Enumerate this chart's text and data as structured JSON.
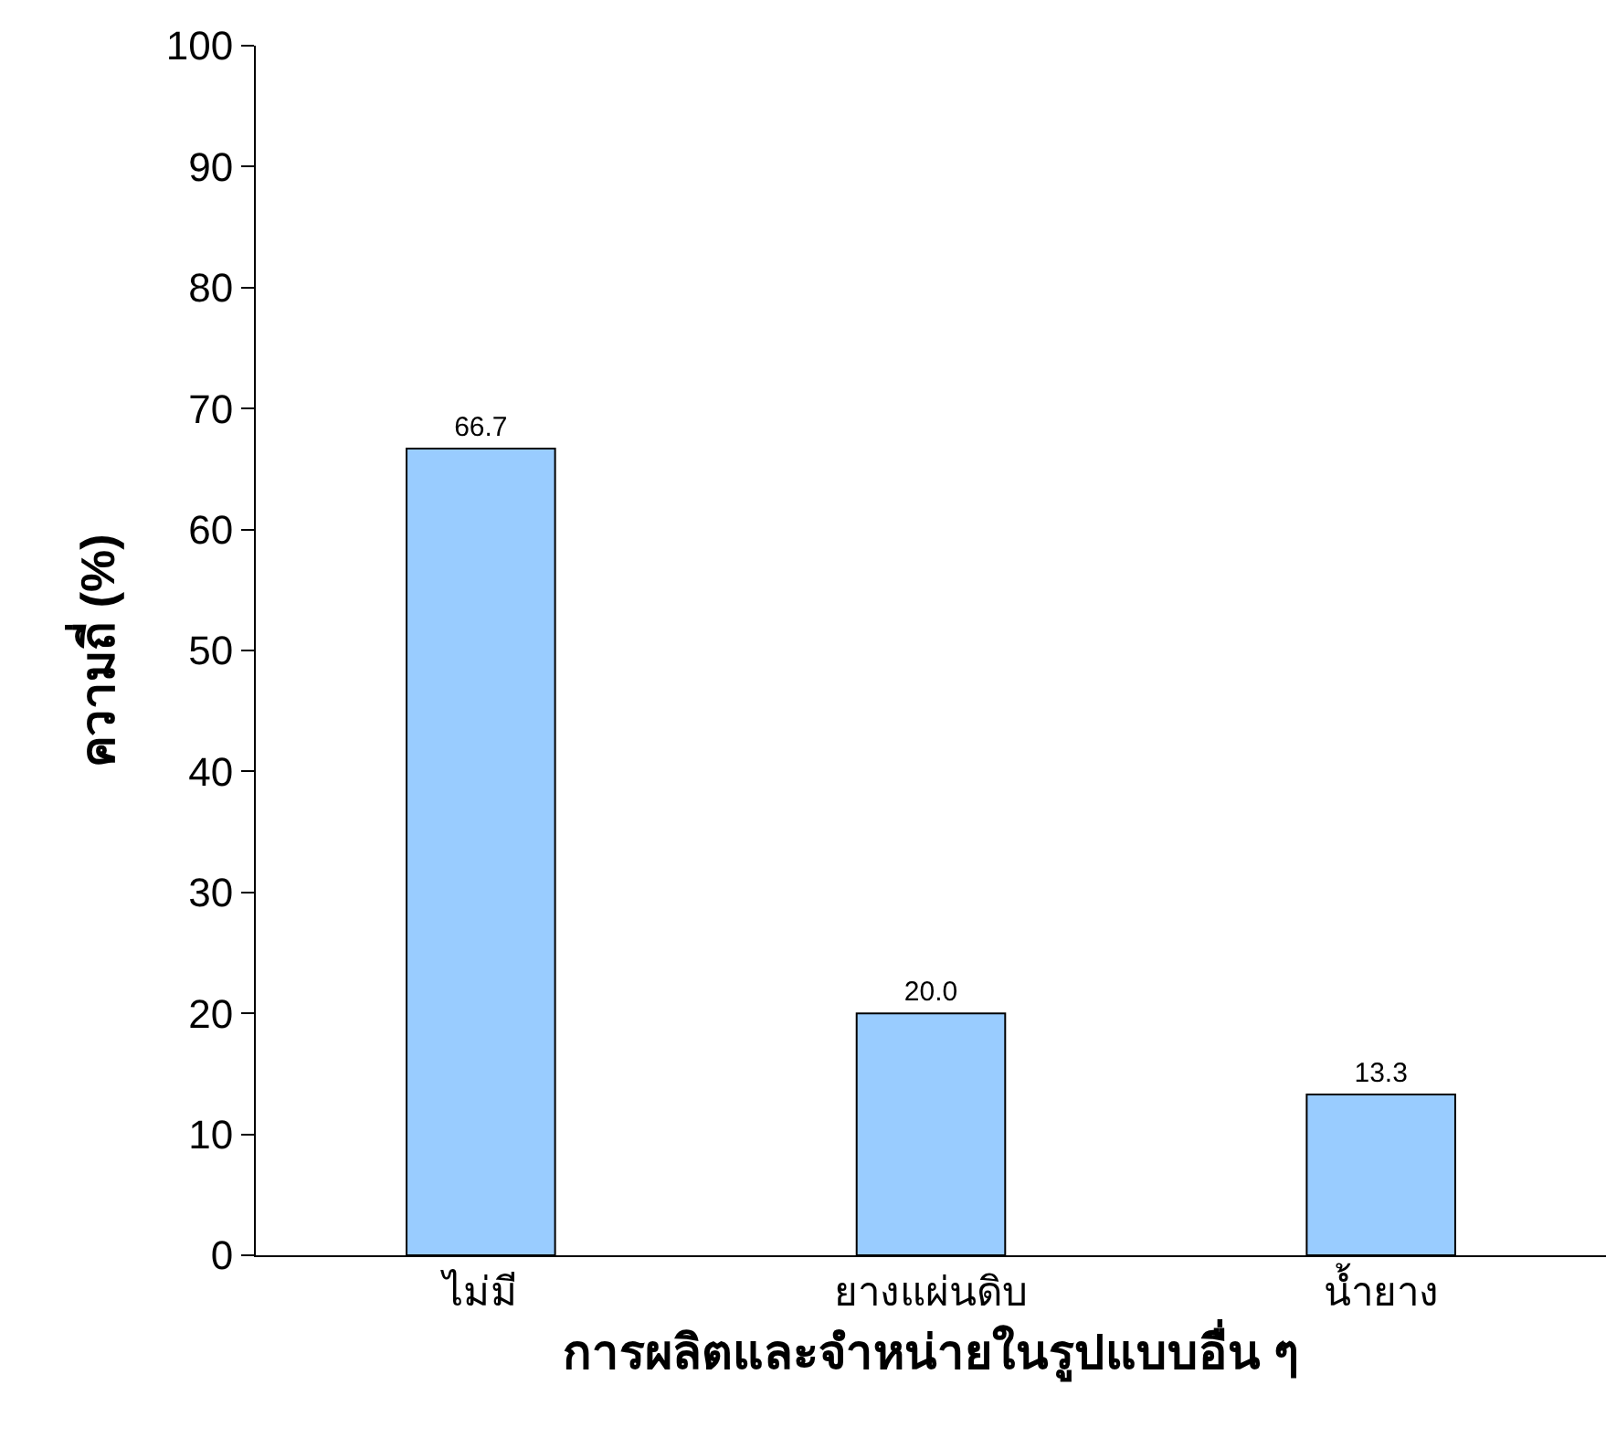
{
  "chart_data": {
    "type": "bar",
    "xlabel": "การผลิตและจำหน่ายในรูปแบบอื่น ๆ",
    "ylabel": "ความถี่ (%)",
    "categories": [
      "ไม่มี",
      "ยางแผ่นดิบ",
      "น้ำยาง"
    ],
    "values": [
      66.7,
      20.0,
      13.3
    ],
    "value_labels": [
      "66.7",
      "20.0",
      "13.3"
    ],
    "color": "#99ccff",
    "ylim": [
      0,
      100
    ],
    "yticks": [
      0,
      10,
      20,
      30,
      40,
      50,
      60,
      70,
      80,
      90,
      100
    ],
    "grid": false
  }
}
